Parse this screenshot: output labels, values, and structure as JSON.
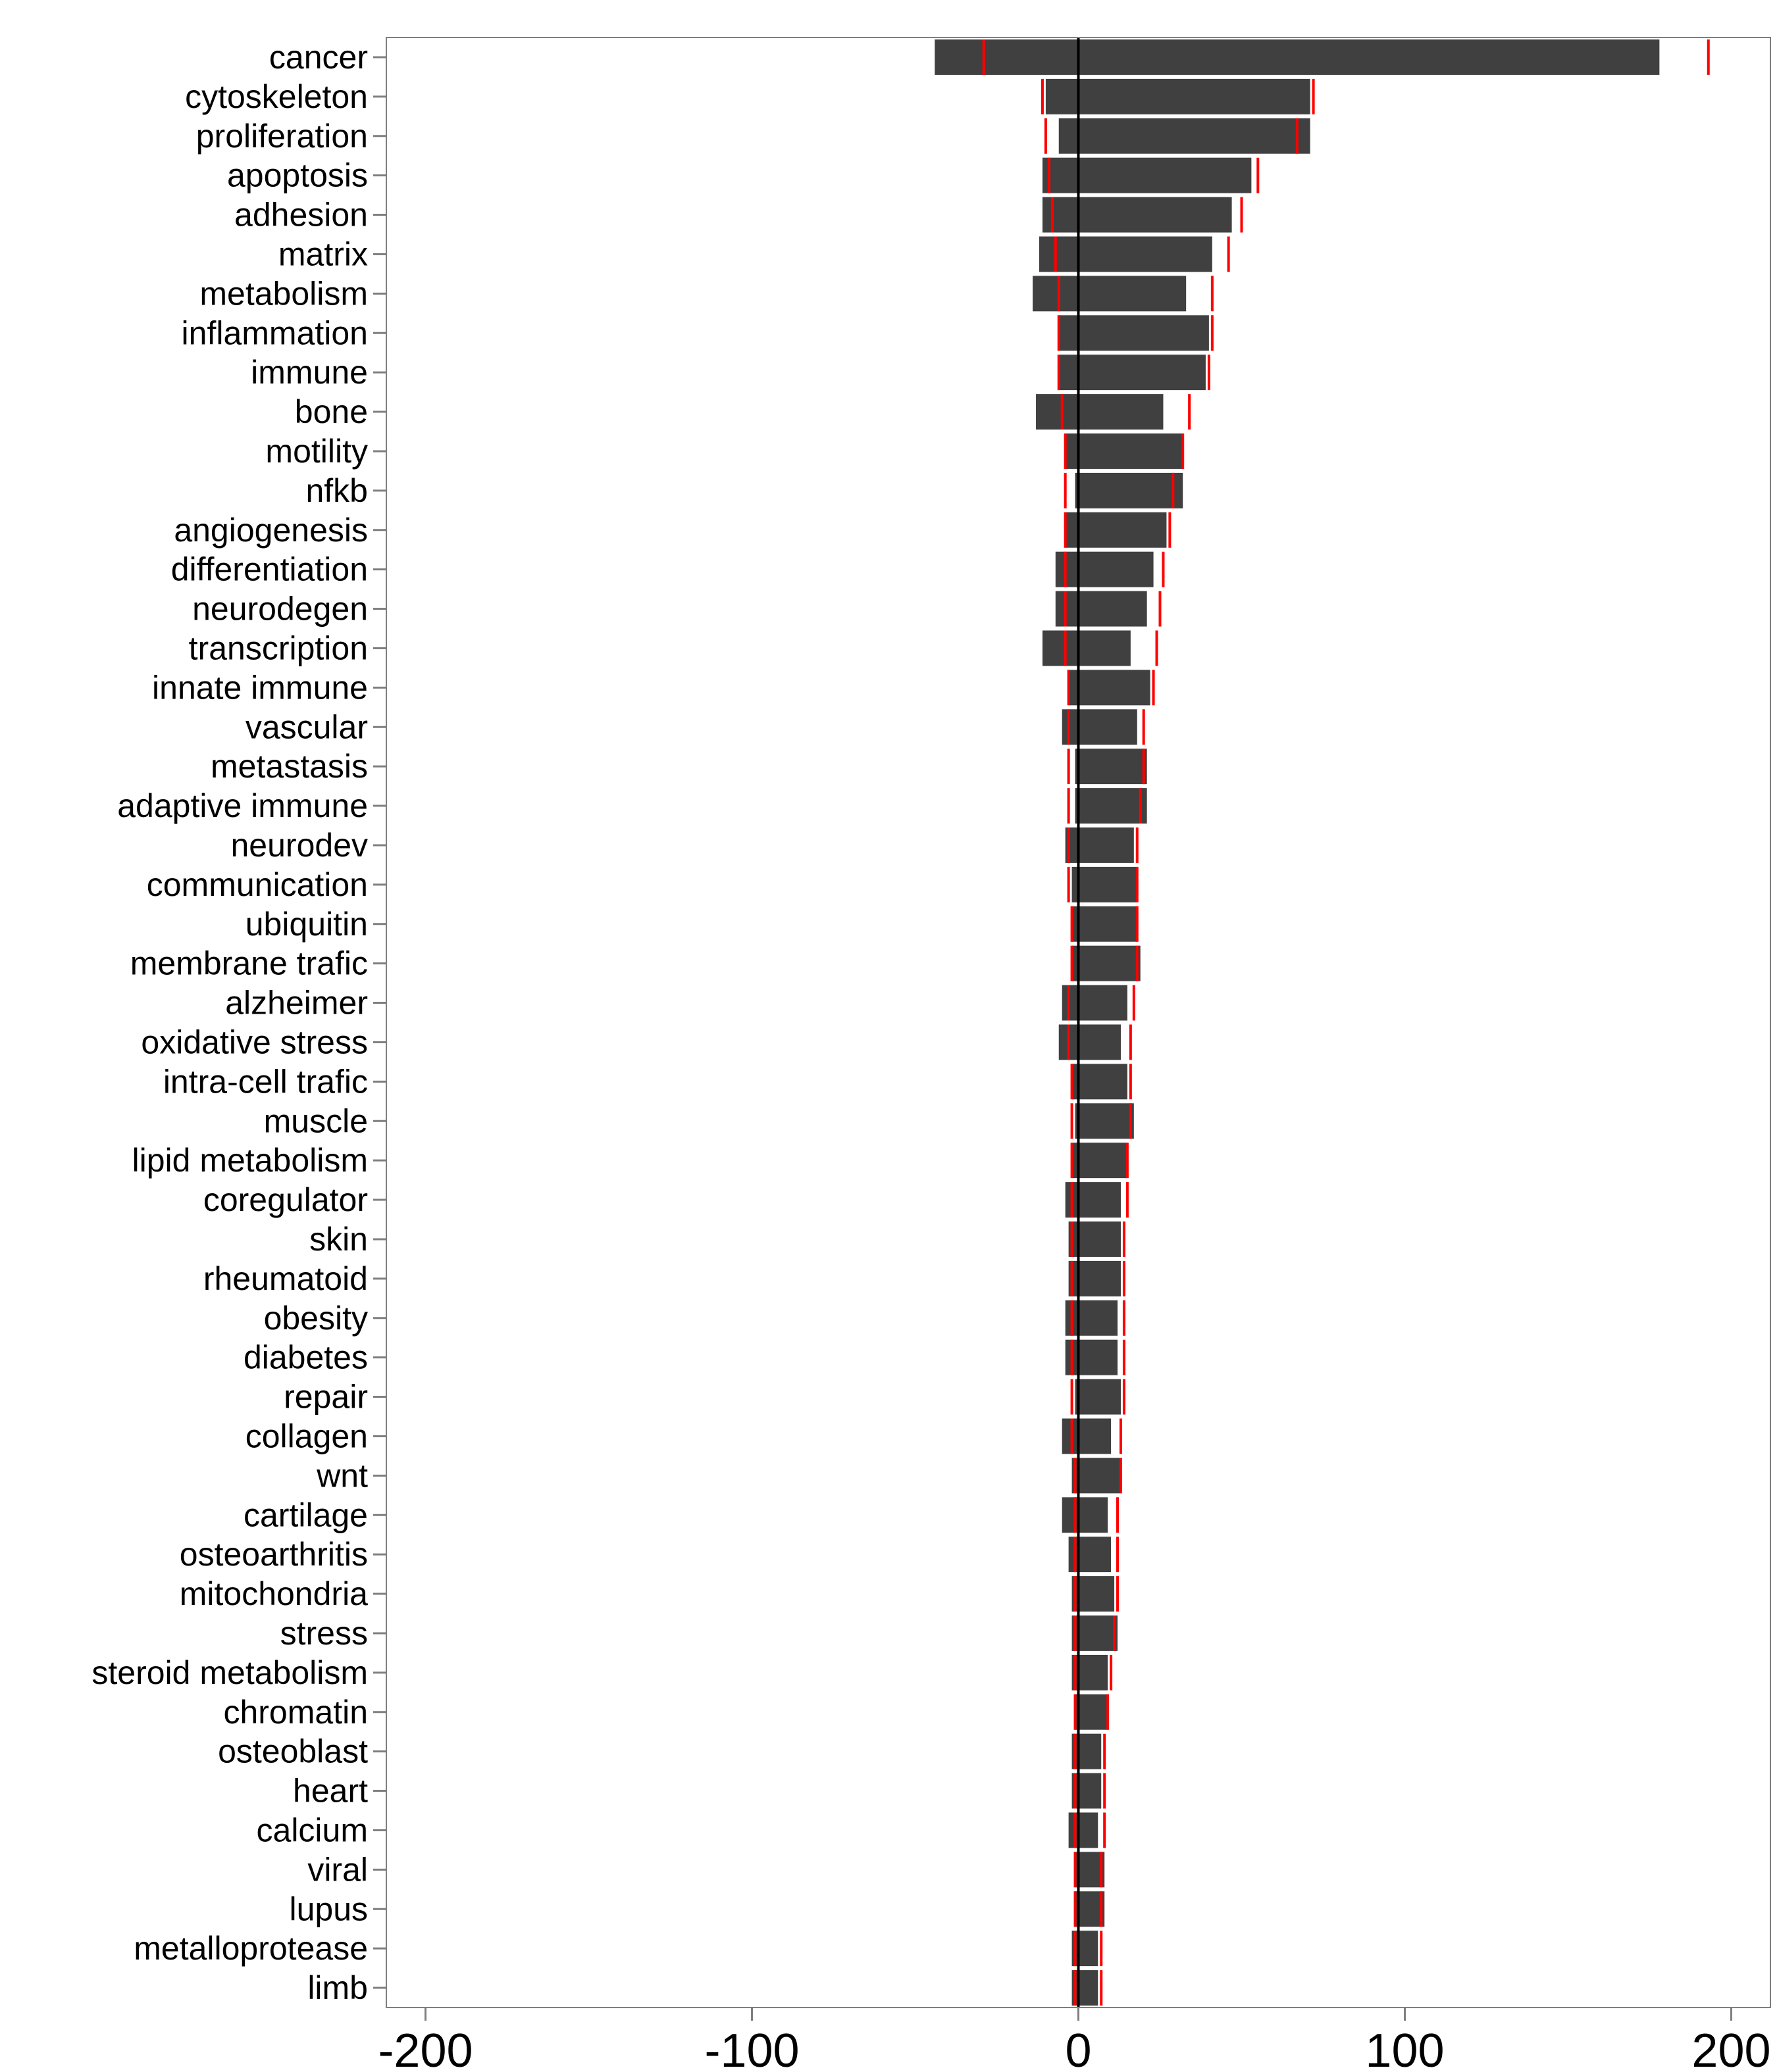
{
  "chart_data": {
    "type": "bar",
    "orientation": "horizontal",
    "title": "",
    "xlabel": "",
    "ylabel": "",
    "xlim": [
      -212,
      212
    ],
    "x_ticks": [
      -200,
      -100,
      0,
      100,
      200
    ],
    "x_tick_labels": [
      "-200",
      "-100",
      "0",
      "100",
      "200"
    ],
    "grid": false,
    "legend": "none",
    "colors": {
      "bar": "#404040",
      "marker": "#ff0000",
      "zero_line": "#000000",
      "panel_border": "#7f7f7f"
    },
    "categories": [
      "cancer",
      "cytoskeleton",
      "proliferation",
      "apoptosis",
      "adhesion",
      "matrix",
      "metabolism",
      "inflammation",
      "immune",
      "bone",
      "motility",
      "nfkb",
      "angiogenesis",
      "differentiation",
      "neurodegen",
      "transcription",
      "innate immune",
      "vascular",
      "metastasis",
      "adaptive immune",
      "neurodev",
      "communication",
      "ubiquitin",
      "membrane trafic",
      "alzheimer",
      "oxidative stress",
      "intra-cell trafic",
      "muscle",
      "lipid metabolism",
      "coregulator",
      "skin",
      "rheumatoid",
      "obesity",
      "diabetes",
      "repair",
      "collagen",
      "wnt",
      "cartilage",
      "osteoarthritis",
      "mitochondria",
      "stress",
      "steroid metabolism",
      "chromatin",
      "osteoblast",
      "heart",
      "calcium",
      "viral",
      "lupus",
      "metalloprotease",
      "limb"
    ],
    "series": [
      {
        "values_negative": [
          -44,
          -10,
          -6,
          -11,
          -11,
          -12,
          -14,
          -6,
          -6,
          -13,
          -4,
          -1,
          -4,
          -7,
          -7,
          -11,
          -3,
          -5,
          -1,
          -1,
          -4,
          -2,
          -2,
          -2,
          -5,
          -6,
          -2,
          -1,
          -2,
          -4,
          -3,
          -3,
          -4,
          -4,
          -1,
          -5,
          -2,
          -5,
          -3,
          -2,
          -2,
          -2,
          -1,
          -2,
          -2,
          -3,
          -1,
          -1,
          -2,
          -2
        ]
      },
      {
        "values_positive": [
          178,
          71,
          71,
          53,
          47,
          41,
          33,
          40,
          39,
          26,
          32,
          32,
          27,
          23,
          21,
          16,
          22,
          18,
          21,
          21,
          17,
          18,
          18,
          19,
          15,
          13,
          15,
          17,
          15,
          13,
          13,
          13,
          12,
          12,
          13,
          10,
          13,
          9,
          10,
          11,
          12,
          9,
          9,
          7,
          7,
          6,
          8,
          8,
          6,
          6
        ]
      },
      {
        "marker_lower": [
          -29,
          -11,
          -10,
          -9,
          -8,
          -7,
          -6,
          -6,
          -6,
          -5,
          -4,
          -4,
          -4,
          -4,
          -4,
          -4,
          -3,
          -3,
          -3,
          -3,
          -3,
          -3,
          -2,
          -2,
          -3,
          -3,
          -2,
          -2,
          -2,
          -2,
          -2,
          -2,
          -2,
          -2,
          -2,
          -2,
          -1,
          -1,
          -1,
          -1,
          -1,
          -1,
          -1,
          -1,
          -1,
          -1,
          -1,
          -1,
          -1,
          -1
        ]
      },
      {
        "marker_upper": [
          193,
          72,
          67,
          55,
          50,
          46,
          41,
          41,
          40,
          34,
          32,
          29,
          28,
          26,
          25,
          24,
          23,
          20,
          20,
          19,
          18,
          18,
          18,
          18,
          17,
          16,
          16,
          16,
          15,
          15,
          14,
          14,
          14,
          14,
          14,
          13,
          13,
          12,
          12,
          12,
          11,
          10,
          9,
          8,
          8,
          8,
          7,
          7,
          7,
          7
        ]
      }
    ]
  }
}
